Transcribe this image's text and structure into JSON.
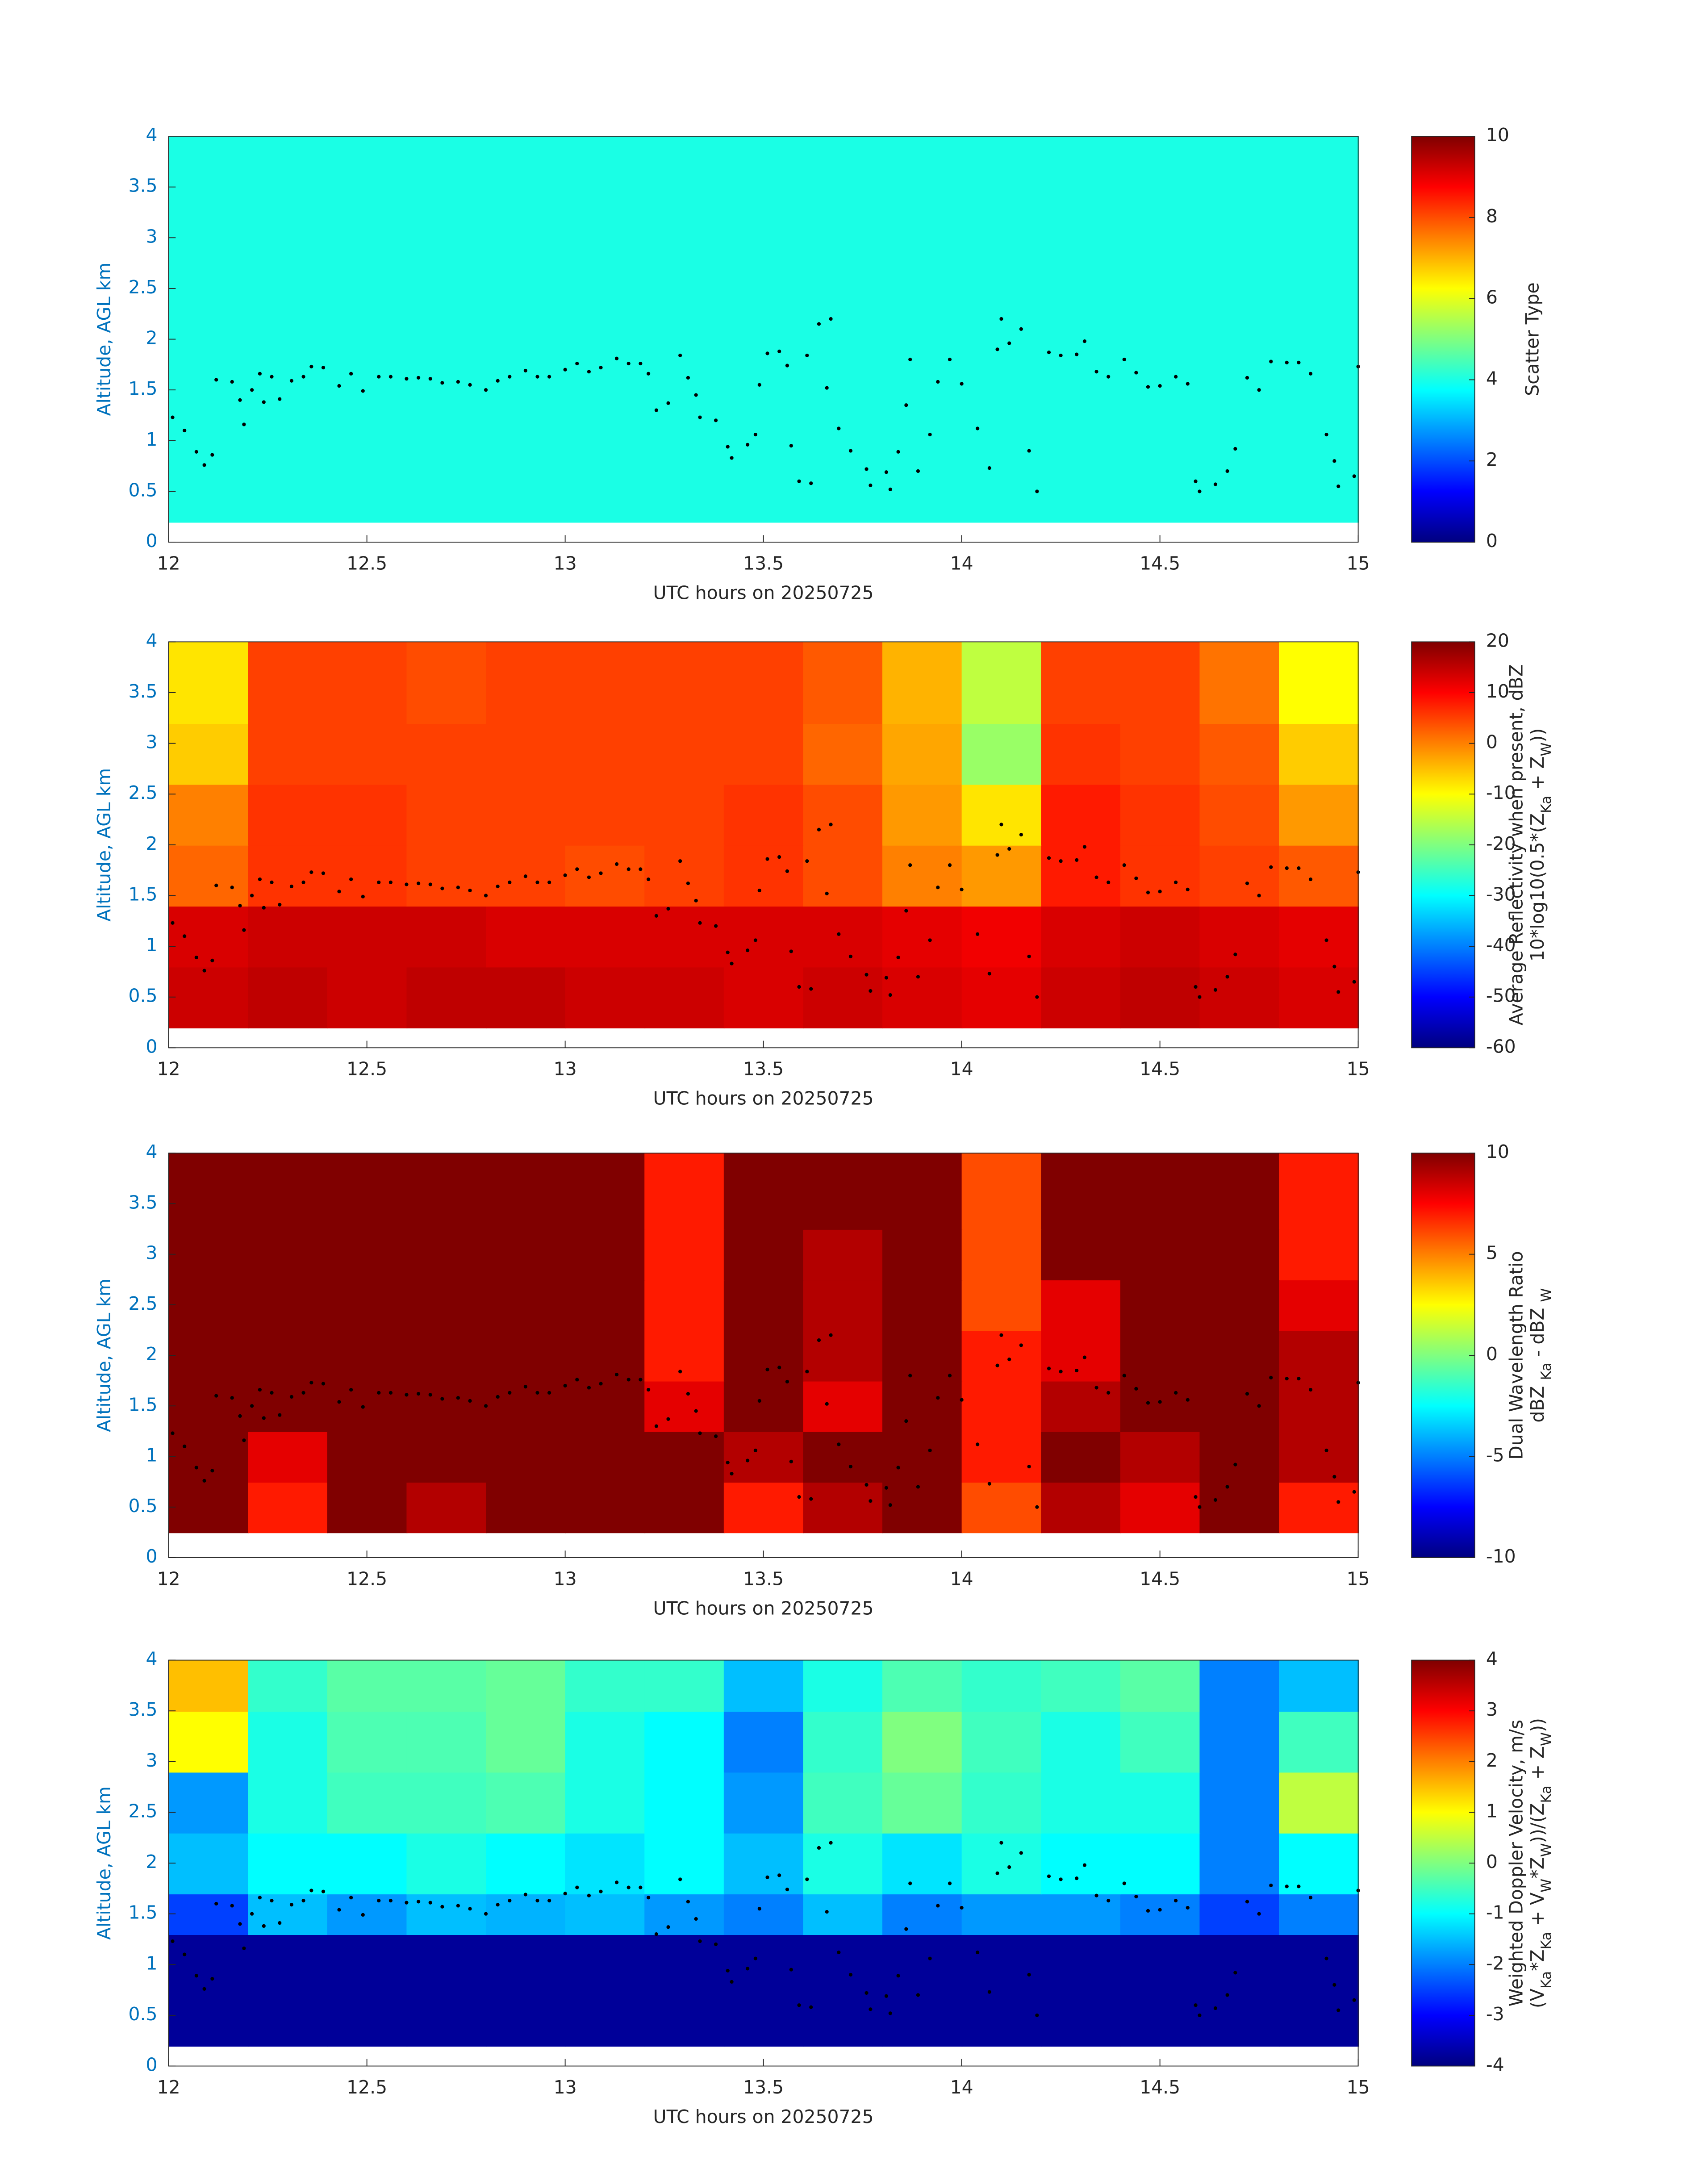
{
  "cloud_base": {
    "x": [
      12.01,
      12.04,
      12.07,
      12.09,
      12.11,
      12.12,
      12.16,
      12.18,
      12.19,
      12.21,
      12.23,
      12.24,
      12.26,
      12.28,
      12.31,
      12.34,
      12.36,
      12.39,
      12.43,
      12.46,
      12.49,
      12.53,
      12.56,
      12.6,
      12.63,
      12.66,
      12.69,
      12.73,
      12.76,
      12.8,
      12.83,
      12.86,
      12.9,
      12.93,
      12.96,
      13.0,
      13.03,
      13.06,
      13.09,
      13.13,
      13.16,
      13.19,
      13.21,
      13.23,
      13.26,
      13.29,
      13.31,
      13.33,
      13.34,
      13.38,
      13.41,
      13.42,
      13.46,
      13.48,
      13.49,
      13.51,
      13.54,
      13.56,
      13.57,
      13.59,
      13.61,
      13.62,
      13.64,
      13.66,
      13.67,
      13.69,
      13.72,
      13.76,
      13.77,
      13.81,
      13.82,
      13.84,
      13.86,
      13.87,
      13.89,
      13.92,
      13.94,
      13.97,
      14.0,
      14.04,
      14.07,
      14.09,
      14.1,
      14.12,
      14.15,
      14.17,
      14.19,
      14.22,
      14.25,
      14.29,
      14.31,
      14.34,
      14.37,
      14.41,
      14.44,
      14.47,
      14.5,
      14.54,
      14.57,
      14.59,
      14.6,
      14.64,
      14.67,
      14.69,
      14.72,
      14.75,
      14.78,
      14.82,
      14.85,
      14.88,
      14.92,
      14.94,
      14.95,
      14.99,
      15.0
    ],
    "y": [
      1.23,
      1.1,
      0.89,
      0.76,
      0.86,
      1.6,
      1.58,
      1.4,
      1.16,
      1.5,
      1.66,
      1.38,
      1.63,
      1.41,
      1.59,
      1.63,
      1.73,
      1.72,
      1.54,
      1.66,
      1.49,
      1.63,
      1.63,
      1.61,
      1.62,
      1.61,
      1.57,
      1.58,
      1.55,
      1.5,
      1.59,
      1.63,
      1.69,
      1.63,
      1.63,
      1.7,
      1.76,
      1.68,
      1.72,
      1.81,
      1.76,
      1.76,
      1.66,
      1.3,
      1.37,
      1.84,
      1.62,
      1.45,
      1.23,
      1.2,
      0.94,
      0.83,
      0.96,
      1.06,
      1.55,
      1.86,
      1.88,
      1.74,
      0.95,
      0.6,
      1.84,
      0.58,
      2.15,
      1.52,
      2.2,
      1.12,
      0.9,
      0.72,
      0.56,
      0.69,
      0.52,
      0.89,
      1.35,
      1.8,
      0.7,
      1.06,
      1.58,
      1.8,
      1.56,
      1.12,
      0.73,
      1.9,
      2.2,
      1.96,
      2.1,
      0.9,
      0.5,
      1.87,
      1.84,
      1.85,
      1.98,
      1.68,
      1.63,
      1.8,
      1.67,
      1.53,
      1.54,
      1.63,
      1.56,
      0.6,
      0.5,
      0.57,
      0.7,
      0.92,
      1.62,
      1.5,
      1.78,
      1.77,
      1.77,
      1.66,
      1.06,
      0.8,
      0.55,
      0.65,
      1.73
    ],
    "color": "#000000"
  },
  "chart_data": [
    {
      "type": "heatmap",
      "xlabel": "UTC hours on 20250725",
      "ylabel": "Altitude, AGL km",
      "ycolor": "#0072bd",
      "colormap": "jet",
      "xlim": [
        12,
        15
      ],
      "ylim": [
        0,
        4
      ],
      "xticks": [
        12,
        12.5,
        13,
        13.5,
        14,
        14.5,
        15
      ],
      "yticks": [
        0,
        0.5,
        1,
        1.5,
        2,
        2.5,
        3,
        3.5,
        4
      ],
      "x_edges": [
        12,
        15
      ],
      "y_edges": [
        0.2,
        4
      ],
      "z": [
        [
          4
        ]
      ],
      "zlim": [
        0,
        10
      ],
      "zticks": [
        0,
        2,
        4,
        6,
        8,
        10
      ],
      "colorbar_label": [
        [
          {
            "text": "Scatter Type"
          }
        ]
      ]
    },
    {
      "type": "heatmap",
      "xlabel": "UTC hours on 20250725",
      "ylabel": "Altitude, AGL km",
      "ycolor": "#0072bd",
      "colormap": "jet",
      "xlim": [
        12,
        15
      ],
      "ylim": [
        0,
        4
      ],
      "xticks": [
        12,
        12.5,
        13,
        13.5,
        14,
        14.5,
        15
      ],
      "yticks": [
        0,
        0.5,
        1,
        1.5,
        2,
        2.5,
        3,
        3.5,
        4
      ],
      "x_edges": [
        12,
        12.2,
        12.4,
        12.6,
        12.8,
        13,
        13.2,
        13.4,
        13.6,
        13.8,
        14,
        14.2,
        14.4,
        14.6,
        14.8,
        15
      ],
      "y_edges": [
        0.2,
        0.8,
        1.4,
        2.0,
        2.6,
        3.2,
        4.0
      ],
      "z": [
        [
          14,
          15,
          14,
          15,
          15,
          14,
          14,
          13,
          14,
          13,
          12,
          14,
          15,
          14,
          13
        ],
        [
          13,
          14,
          14,
          14,
          13,
          13,
          13,
          13,
          13,
          12,
          11,
          13,
          14,
          13,
          12
        ],
        [
          2,
          6,
          6,
          5,
          5,
          4,
          5,
          6,
          4,
          0,
          -2,
          8,
          6,
          5,
          3
        ],
        [
          0,
          6,
          6,
          5,
          5,
          5,
          5,
          6,
          4,
          -2,
          -8,
          8,
          6,
          4,
          -2
        ],
        [
          -6,
          5,
          5,
          5,
          5,
          5,
          5,
          5,
          2,
          -3,
          -18,
          6,
          5,
          3,
          -6
        ],
        [
          -8,
          5,
          5,
          4,
          5,
          5,
          5,
          5,
          3,
          -4,
          -15,
          5,
          5,
          1,
          -10
        ]
      ],
      "zlim": [
        -60,
        20
      ],
      "zticks": [
        -60,
        -50,
        -40,
        -30,
        -20,
        -10,
        0,
        10,
        20
      ],
      "colorbar_label": [
        [
          {
            "text": "Average Reflectivity when present, dBZ"
          }
        ],
        [
          {
            "text": "10*log10(0.5*(Z"
          },
          {
            "text": "Ka",
            "sub": true
          },
          {
            "text": " + Z"
          },
          {
            "text": "W",
            "sub": true
          },
          {
            "text": "))"
          }
        ]
      ]
    },
    {
      "type": "heatmap",
      "xlabel": "UTC hours on 20250725",
      "ylabel": "Altitude, AGL km",
      "ycolor": "#0072bd",
      "colormap": "jet",
      "xlim": [
        12,
        15
      ],
      "ylim": [
        0,
        4
      ],
      "xticks": [
        12,
        12.5,
        13,
        13.5,
        14,
        14.5,
        15
      ],
      "yticks": [
        0,
        0.5,
        1,
        1.5,
        2,
        2.5,
        3,
        3.5,
        4
      ],
      "x_edges": [
        12,
        12.2,
        12.4,
        12.6,
        12.8,
        13,
        13.2,
        13.4,
        13.6,
        13.8,
        14,
        14.2,
        14.4,
        14.6,
        14.8,
        15
      ],
      "y_edges": [
        0.25,
        0.75,
        1.25,
        1.75,
        2.25,
        2.75,
        3.25,
        4.0
      ],
      "z": [
        [
          10,
          7,
          10,
          9,
          10,
          10,
          10,
          7,
          9,
          10,
          6,
          9,
          8,
          10,
          7
        ],
        [
          10,
          8,
          10,
          10,
          10,
          10,
          10,
          9,
          10,
          10,
          7,
          10,
          9,
          10,
          9
        ],
        [
          10,
          10,
          10,
          10,
          10,
          10,
          8,
          10,
          8,
          10,
          7,
          9,
          10,
          10,
          9
        ],
        [
          10,
          10,
          10,
          10,
          10,
          10,
          7,
          10,
          9,
          10,
          7,
          8,
          10,
          10,
          9
        ],
        [
          10,
          10,
          10,
          10,
          10,
          10,
          7,
          10,
          9,
          10,
          6,
          8,
          10,
          10,
          8
        ],
        [
          10,
          10,
          10,
          10,
          10,
          10,
          7,
          10,
          9,
          10,
          6,
          10,
          10,
          10,
          7
        ],
        [
          10,
          10,
          10,
          10,
          10,
          10,
          7,
          10,
          10,
          10,
          6,
          10,
          10,
          10,
          7
        ]
      ],
      "zlim": [
        -10,
        10
      ],
      "zticks": [
        -10,
        -5,
        0,
        5,
        10
      ],
      "colorbar_label": [
        [
          {
            "text": "Dual Wavelength Ratio"
          }
        ],
        [
          {
            "text": "dBZ "
          },
          {
            "text": "Ka",
            "sub": true
          },
          {
            "text": " - dBZ "
          },
          {
            "text": "W",
            "sub": true
          }
        ]
      ]
    },
    {
      "type": "heatmap",
      "xlabel": "UTC hours on 20250725",
      "ylabel": "Altitude, AGL km",
      "ycolor": "#0072bd",
      "colormap": "jet",
      "xlim": [
        12,
        15
      ],
      "ylim": [
        0,
        4
      ],
      "xticks": [
        12,
        12.5,
        13,
        13.5,
        14,
        14.5,
        15
      ],
      "yticks": [
        0,
        0.5,
        1,
        1.5,
        2,
        2.5,
        3,
        3.5,
        4
      ],
      "x_edges": [
        12,
        12.2,
        12.4,
        12.6,
        12.8,
        13,
        13.2,
        13.4,
        13.6,
        13.8,
        14,
        14.2,
        14.4,
        14.6,
        14.8,
        15
      ],
      "y_edges": [
        0.2,
        1.3,
        1.7,
        2.3,
        2.9,
        3.5,
        4.0
      ],
      "z": [
        [
          -3.8,
          -3.8,
          -3.8,
          -3.8,
          -3.8,
          -3.8,
          -3.8,
          -3.8,
          -3.8,
          -3.8,
          -3.8,
          -3.8,
          -3.8,
          -3.8,
          -3.8
        ],
        [
          -2.5,
          -1.5,
          -1.8,
          -1.5,
          -1.6,
          -1.5,
          -1.8,
          -2,
          -1.5,
          -2,
          -1.8,
          -1.8,
          -2,
          -2.5,
          -2
        ],
        [
          -1.5,
          -1,
          -1,
          -0.8,
          -1,
          -1.2,
          -1,
          -1.5,
          -0.8,
          -1.2,
          -0.8,
          -1,
          -1,
          -2,
          -1
        ],
        [
          -1.8,
          -0.8,
          -0.5,
          -0.5,
          -0.4,
          -0.8,
          -1,
          -1.8,
          -0.5,
          -0.2,
          -0.6,
          -0.8,
          -0.8,
          -2,
          0.5
        ],
        [
          1,
          -0.8,
          -0.4,
          -0.4,
          -0.2,
          -0.8,
          -1,
          -2,
          -0.6,
          0,
          -0.5,
          -0.8,
          -0.5,
          -2,
          -0.5
        ],
        [
          1.5,
          -0.6,
          -0.3,
          -0.3,
          -0.2,
          -0.6,
          -0.6,
          -1.5,
          -0.8,
          -0.4,
          -0.6,
          -0.5,
          -0.3,
          -2,
          -1.5
        ]
      ],
      "zlim": [
        -4,
        4
      ],
      "zticks": [
        -4,
        -3,
        -2,
        -1,
        0,
        1,
        2,
        3,
        4
      ],
      "colorbar_label": [
        [
          {
            "text": "Weighted Doppler Velocity, m/s"
          }
        ],
        [
          {
            "text": "(V"
          },
          {
            "text": "Ka",
            "sub": true
          },
          {
            "text": "*Z"
          },
          {
            "text": "Ka",
            "sub": true
          },
          {
            "text": " + V"
          },
          {
            "text": "W",
            "sub": true
          },
          {
            "text": "*Z"
          },
          {
            "text": "W",
            "sub": true
          },
          {
            "text": "))/(Z"
          },
          {
            "text": "Ka",
            "sub": true
          },
          {
            "text": " + Z"
          },
          {
            "text": "W",
            "sub": true
          },
          {
            "text": "))"
          }
        ]
      ]
    }
  ]
}
